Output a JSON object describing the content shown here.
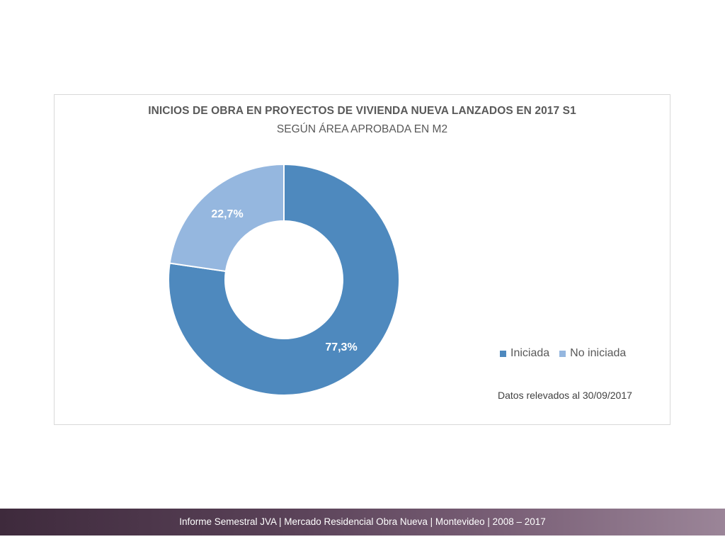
{
  "chart_data": {
    "type": "pie",
    "title": "INICIOS DE OBRA EN PROYECTOS DE VIVIENDA NUEVA LANZADOS EN 2017 S1",
    "subtitle": "SEGÚN ÁREA APROBADA EN M2",
    "categories": [
      "Iniciada",
      "No iniciada"
    ],
    "values": [
      77.3,
      22.7
    ],
    "data_labels": [
      "77,3%",
      "22,7%"
    ],
    "colors": [
      "#4e89be",
      "#95b7df"
    ],
    "donut": true,
    "legend_position": "bottom-right",
    "note": "Datos relevados al 30/09/2017"
  },
  "footer": {
    "text": "Informe Semestral JVA | Mercado Residencial Obra Nueva | Montevideo | 2008 – 2017"
  }
}
